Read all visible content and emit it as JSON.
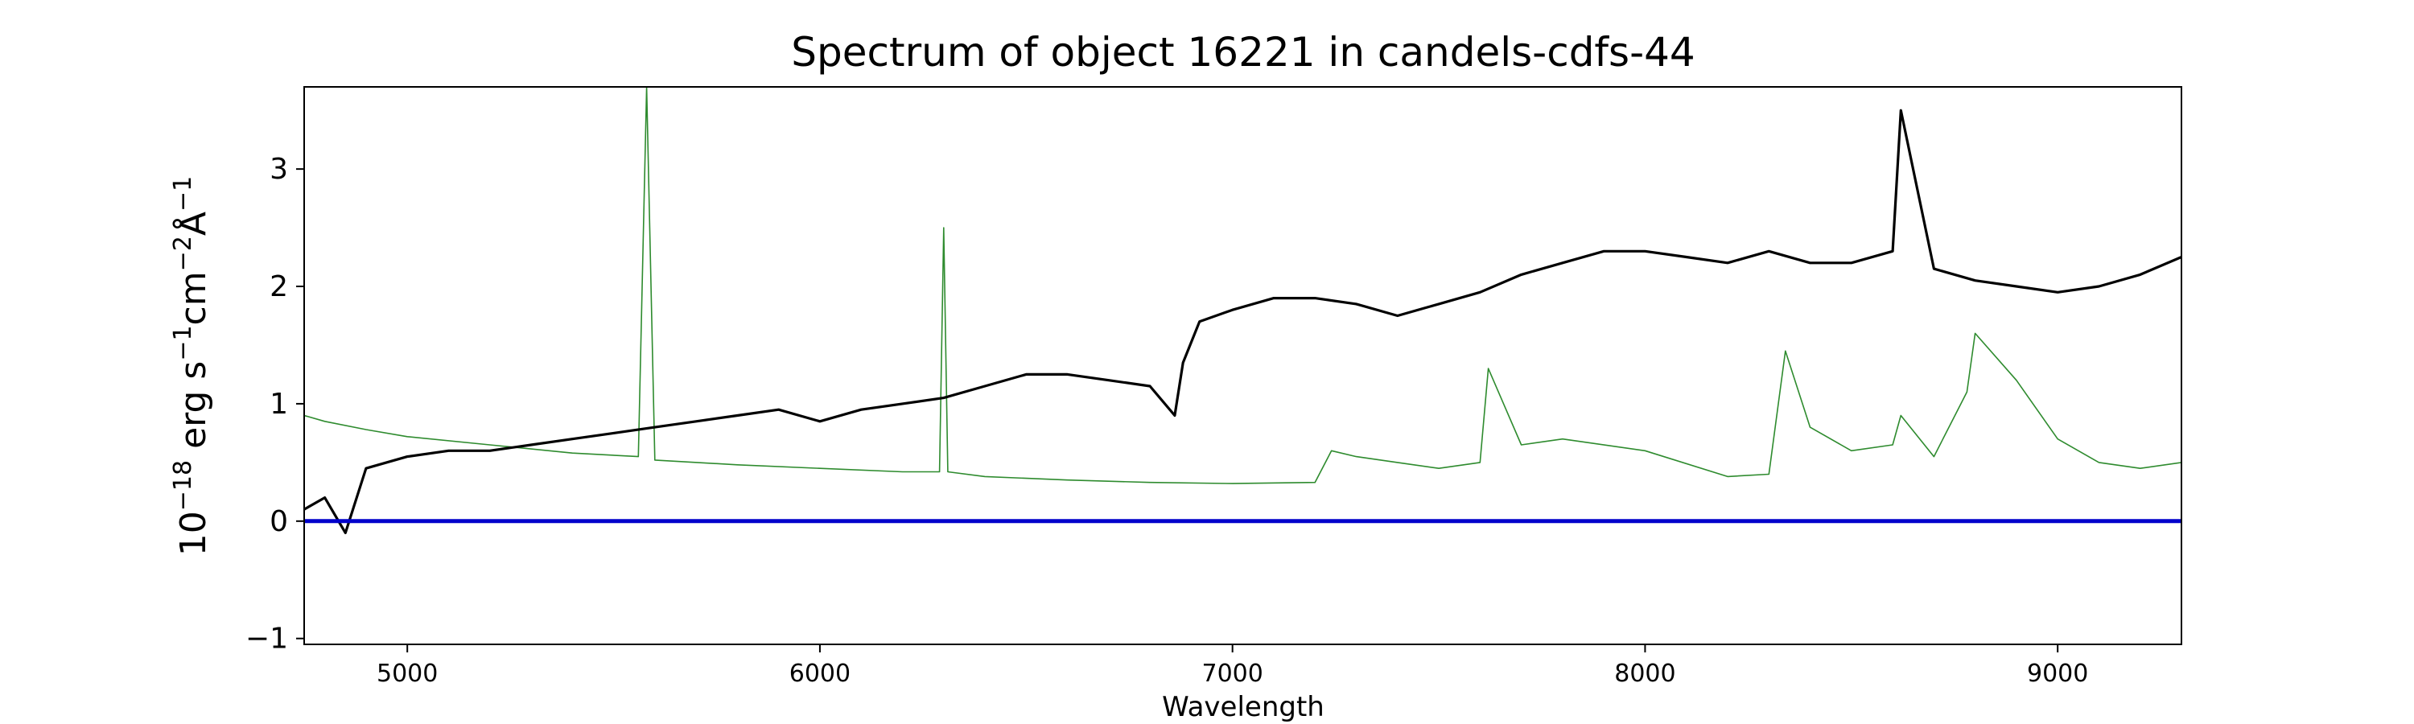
{
  "chart_data": {
    "type": "line",
    "title": "Spectrum of object 16221 in candels-cdfs-44",
    "xlabel": "Wavelength",
    "ylabel": "10$^{-18}$ erg s$^{-1}$cm$^{-2}$Å$^{-1}$",
    "ylabel_parts": {
      "base": "10",
      "exp1": "−18",
      "mid1": " erg s",
      "exp2": "−1",
      "mid2": "cm",
      "exp3": "−2",
      "mid3": "Å",
      "exp4": "−1"
    },
    "xlim": [
      4750,
      9300
    ],
    "ylim": [
      -1.05,
      3.7
    ],
    "x_ticks": [
      5000,
      6000,
      7000,
      8000,
      9000
    ],
    "x_tick_labels": [
      "5000",
      "6000",
      "7000",
      "8000",
      "9000"
    ],
    "y_ticks": [
      -1,
      0,
      1,
      2,
      3
    ],
    "y_tick_labels": [
      "−1",
      "0",
      "1",
      "2",
      "3"
    ],
    "grid": false,
    "series": [
      {
        "role": "flux",
        "color": "#000000",
        "x": [
          4750,
          4800,
          4850,
          4900,
          5000,
          5100,
          5200,
          5300,
          5400,
          5500,
          5600,
          5700,
          5800,
          5900,
          6000,
          6100,
          6200,
          6300,
          6400,
          6500,
          6600,
          6700,
          6800,
          6860,
          6880,
          6920,
          7000,
          7100,
          7200,
          7300,
          7400,
          7500,
          7600,
          7700,
          7800,
          7900,
          8000,
          8100,
          8200,
          8300,
          8400,
          8500,
          8600,
          8620,
          8700,
          8800,
          8900,
          9000,
          9100,
          9200,
          9300
        ],
        "y": [
          0.1,
          0.2,
          -0.1,
          0.45,
          0.55,
          0.6,
          0.6,
          0.65,
          0.7,
          0.75,
          0.8,
          0.85,
          0.9,
          0.95,
          0.85,
          0.95,
          1.0,
          1.05,
          1.15,
          1.25,
          1.25,
          1.2,
          1.15,
          0.9,
          1.35,
          1.7,
          1.8,
          1.9,
          1.9,
          1.85,
          1.75,
          1.85,
          1.95,
          2.1,
          2.2,
          2.3,
          2.3,
          2.25,
          2.2,
          2.3,
          2.2,
          2.2,
          2.3,
          3.5,
          2.15,
          2.05,
          2.0,
          1.95,
          2.0,
          2.1,
          2.25
        ]
      },
      {
        "role": "error",
        "color": "#2e8b2e",
        "x": [
          4750,
          4800,
          4900,
          5000,
          5200,
          5400,
          5560,
          5580,
          5600,
          5800,
          6000,
          6200,
          6290,
          6300,
          6310,
          6400,
          6600,
          6800,
          7000,
          7200,
          7240,
          7300,
          7400,
          7500,
          7600,
          7620,
          7700,
          7800,
          8000,
          8200,
          8300,
          8340,
          8400,
          8500,
          8600,
          8620,
          8700,
          8780,
          8800,
          8900,
          9000,
          9100,
          9200,
          9300
        ],
        "y": [
          0.9,
          0.85,
          0.78,
          0.72,
          0.65,
          0.58,
          0.55,
          3.7,
          0.52,
          0.48,
          0.45,
          0.42,
          0.42,
          2.5,
          0.42,
          0.38,
          0.35,
          0.33,
          0.32,
          0.33,
          0.6,
          0.55,
          0.5,
          0.45,
          0.5,
          1.3,
          0.65,
          0.7,
          0.6,
          0.38,
          0.4,
          1.45,
          0.8,
          0.6,
          0.65,
          0.9,
          0.55,
          1.1,
          1.6,
          1.2,
          0.7,
          0.5,
          0.45,
          0.5
        ]
      },
      {
        "role": "zero",
        "color": "#0000cc",
        "x": [
          4750,
          9300
        ],
        "y": [
          0,
          0
        ]
      }
    ]
  }
}
